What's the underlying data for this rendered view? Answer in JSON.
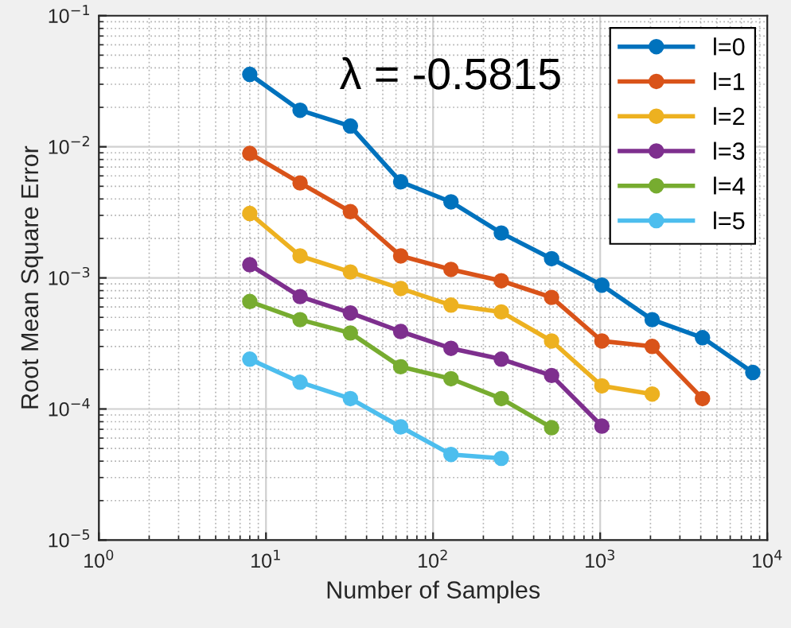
{
  "chart_data": {
    "type": "line",
    "xlabel": "Number of Samples",
    "ylabel": "Root Mean Square Error",
    "log": "xy",
    "grid": true,
    "legend": "top right",
    "marker": "circle",
    "line_style": "solid",
    "annotations": [
      "λ = -0.5815"
    ],
    "xlim": [
      1,
      10000
    ],
    "ylim": [
      1e-05,
      0.1
    ],
    "xticks": [
      {
        "value": 1,
        "label": "10$^{0}$"
      },
      {
        "value": 10,
        "label": "10$^{1}$"
      },
      {
        "value": 100,
        "label": "10$^{2}$"
      },
      {
        "value": 1000,
        "label": "10$^{3}$"
      },
      {
        "value": 10000,
        "label": "10$^{4}$"
      }
    ],
    "yticks": [
      {
        "value": 1e-05,
        "label": "10$^{−5}$"
      },
      {
        "value": 0.0001,
        "label": "10$^{−4}$"
      },
      {
        "value": 0.001,
        "label": "10$^{−3}$"
      },
      {
        "value": 0.01,
        "label": "10$^{−2}$"
      },
      {
        "value": 0.1,
        "label": "10$^{−1}$"
      }
    ],
    "series": [
      {
        "name": "l=0",
        "color": "#0072bd",
        "x": [
          8,
          16,
          32,
          64,
          128,
          256,
          512,
          1024,
          2048,
          4096,
          8192
        ],
        "values": [
          0.0357,
          0.019,
          0.0144,
          0.0054,
          0.0038,
          0.0022,
          0.0014,
          0.00088,
          0.00048,
          0.00035,
          0.00019
        ]
      },
      {
        "name": "l=1",
        "color": "#d95319",
        "x": [
          8,
          16,
          32,
          64,
          128,
          256,
          512,
          1024,
          2048,
          4096
        ],
        "values": [
          0.0089,
          0.0053,
          0.0032,
          0.00147,
          0.00116,
          0.00095,
          0.00071,
          0.00033,
          0.0003,
          0.00012
        ]
      },
      {
        "name": "l=2",
        "color": "#edb120",
        "x": [
          8,
          16,
          32,
          64,
          128,
          256,
          512,
          1024,
          2048
        ],
        "values": [
          0.0031,
          0.00147,
          0.00111,
          0.00083,
          0.00062,
          0.00055,
          0.00033,
          0.00015,
          0.00013
        ]
      },
      {
        "name": "l=3",
        "color": "#7e2f8e",
        "x": [
          8,
          16,
          32,
          64,
          128,
          256,
          512,
          1024
        ],
        "values": [
          0.00126,
          0.00072,
          0.00054,
          0.00039,
          0.00029,
          0.00024,
          0.00018,
          7.4e-05
        ]
      },
      {
        "name": "l=4",
        "color": "#77ac30",
        "x": [
          8,
          16,
          32,
          64,
          128,
          256,
          512
        ],
        "values": [
          0.00066,
          0.00048,
          0.00038,
          0.00021,
          0.00017,
          0.00012,
          7.2e-05
        ]
      },
      {
        "name": "l=5",
        "color": "#4dbeee",
        "x": [
          8,
          16,
          32,
          64,
          128,
          256
        ],
        "values": [
          0.00024,
          0.00016,
          0.00012,
          7.3e-05,
          4.5e-05,
          4.2e-05
        ]
      }
    ]
  }
}
